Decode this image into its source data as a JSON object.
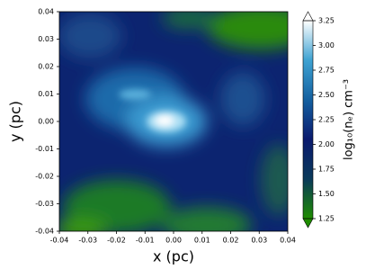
{
  "chart_data": {
    "type": "heatmap",
    "xlabel": "x (pc)",
    "ylabel": "y (pc)",
    "xlim": [
      -0.04,
      0.04
    ],
    "ylim": [
      -0.04,
      0.04
    ],
    "xticks": [
      -0.04,
      -0.03,
      -0.02,
      -0.01,
      {
        "value": 0,
        "label": "0.00"
      },
      0.01,
      0.02,
      0.03,
      0.04
    ],
    "yticks": [
      -0.04,
      -0.03,
      -0.02,
      -0.01,
      {
        "value": 0,
        "label": "0.00"
      },
      0.01,
      0.02,
      0.03,
      0.04
    ],
    "colorbar": {
      "label": "log₁₀(nₑ) cm⁻³",
      "lim": [
        1.25,
        3.25
      ],
      "ticks": [
        1.25,
        {
          "value": 1.5,
          "label": "1.50"
        },
        1.75,
        {
          "value": 2,
          "label": "2.00"
        },
        2.25,
        {
          "value": 2.5,
          "label": "2.50"
        },
        2.75,
        {
          "value": 3,
          "label": "3.00"
        },
        3.25
      ],
      "colors": [
        "#1e8c00",
        "#0a3a5a",
        "#0a1a6e",
        "#1460a0",
        "#3ea2d2",
        "#ffffff"
      ]
    }
  }
}
